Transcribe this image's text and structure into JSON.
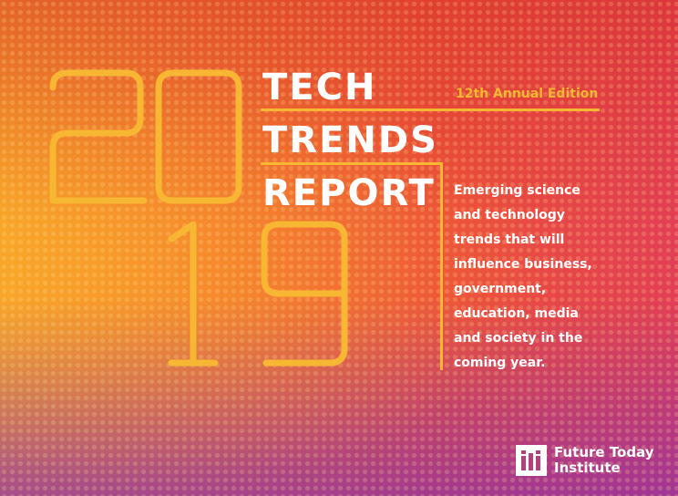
{
  "cover": {
    "year_digits": [
      "2",
      "0",
      "1",
      "9"
    ],
    "title_lines": [
      "TECH",
      "TRENDS",
      "REPORT"
    ],
    "edition": "12th Annual Edition",
    "description": "Emerging science\nand technology\ntrends that will\ninfluence business,\ngovernment,\neducation, media\nand society in the\ncoming year."
  },
  "logo": {
    "line1": "Future Today",
    "line2": "Institute"
  },
  "colors": {
    "accent": "#f7b733",
    "text": "#ffffff",
    "background_left": "#f6a22a",
    "background_right": "#e23f55",
    "background_bottom": "#8c32aa"
  }
}
